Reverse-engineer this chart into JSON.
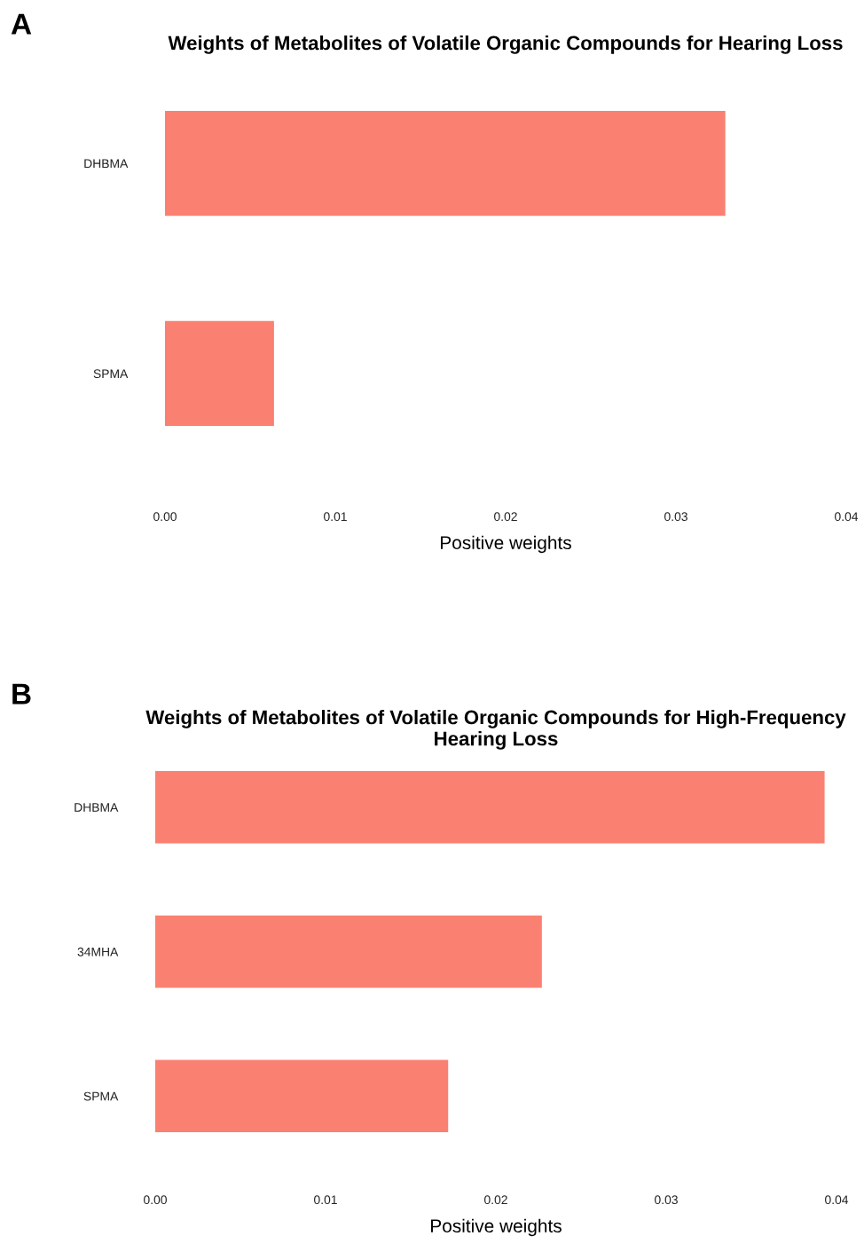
{
  "chart_data": [
    {
      "type": "bar",
      "orientation": "horizontal",
      "title": "Weights of Metabolites of Volatile Organic Compounds for Hearing Loss",
      "xlabel": "Positive weights",
      "annotations": [
        "A"
      ],
      "categories": [
        "DHBMA",
        "SPMA"
      ],
      "values": [
        0.0329,
        0.0064
      ],
      "color": "#fa8072",
      "xlim": [
        0,
        0.04
      ],
      "xticks": [
        {
          "value": 0,
          "label": "0.00"
        },
        {
          "value": 0.01,
          "label": "0.01"
        },
        {
          "value": 0.02,
          "label": "0.02"
        },
        {
          "value": 0.03,
          "label": "0.03"
        },
        {
          "value": 0.04,
          "label": "0.04"
        }
      ],
      "grid": false
    },
    {
      "type": "bar",
      "orientation": "horizontal",
      "title": "Weights of Metabolites of Volatile Organic Compounds for High-Frequency Hearing Loss",
      "xlabel": "Positive weights",
      "annotations": [
        "B"
      ],
      "categories": [
        "DHBMA",
        "34MHA",
        "SPMA"
      ],
      "values": [
        0.0393,
        0.0227,
        0.0172
      ],
      "color": "#fa8072",
      "xlim": [
        0,
        0.04
      ],
      "xticks": [
        {
          "value": 0,
          "label": "0.00"
        },
        {
          "value": 0.01,
          "label": "0.01"
        },
        {
          "value": 0.02,
          "label": "0.02"
        },
        {
          "value": 0.03,
          "label": "0.03"
        },
        {
          "value": 0.04,
          "label": "0.04"
        }
      ],
      "grid": false
    }
  ]
}
